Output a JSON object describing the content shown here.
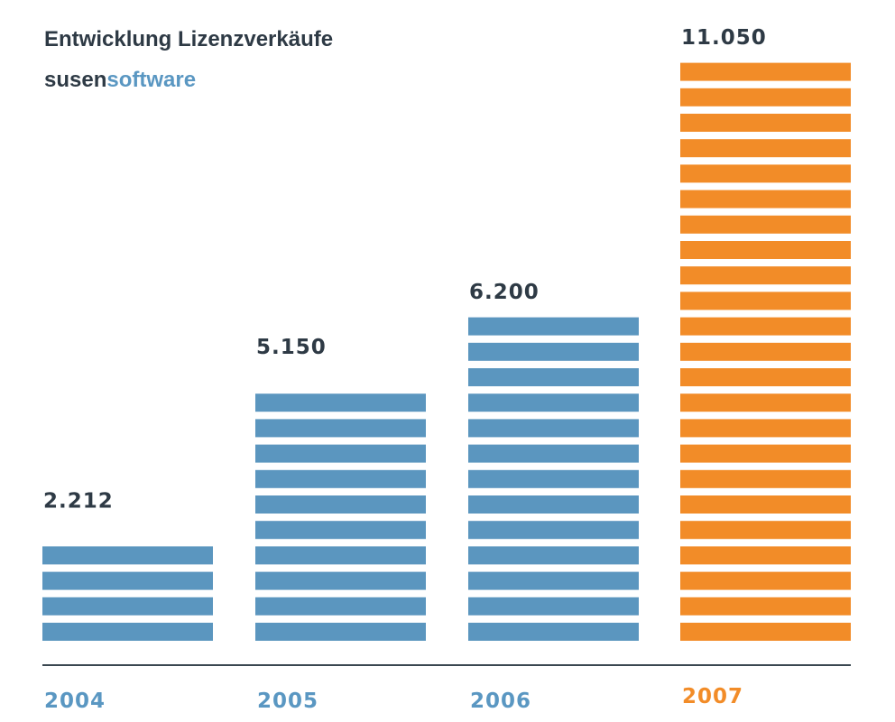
{
  "header": {
    "title": "Entwicklung Lizenzverkäufe",
    "brand_part1": "susen",
    "brand_part2": "software"
  },
  "colors": {
    "text_dark": "#2e3a45",
    "brand_blue": "#5a97c2",
    "bar_blue": "#5b96bf",
    "bar_orange": "#f28c28",
    "axis": "#3a4750",
    "year_blue": "#5a97c2",
    "year_orange": "#f28c28",
    "background": "#ffffff"
  },
  "chart_data": {
    "type": "bar",
    "title": "Entwicklung Lizenzverkäufe",
    "categories": [
      "2004",
      "2005",
      "2006",
      "2007"
    ],
    "values": [
      2212,
      5150,
      6200,
      11050
    ],
    "value_labels": [
      "2.212",
      "5.150",
      "6.200",
      "11.050"
    ],
    "highlight_category": "2007",
    "xlabel": "",
    "ylabel": "",
    "ylim": [
      0,
      11050
    ],
    "grid": false,
    "legend": "none",
    "bar_style": "horizontal-striped"
  }
}
